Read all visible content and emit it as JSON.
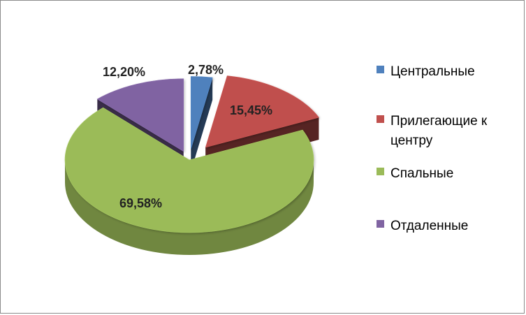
{
  "chart_data": {
    "type": "pie",
    "title": "",
    "labels": [
      "Центральные",
      "Прилегающие к центру",
      "Спальные",
      "Отдаленные"
    ],
    "legend_lines": [
      [
        "Центральные"
      ],
      [
        "Прилегающие к",
        "центру"
      ],
      [
        "Спальные"
      ],
      [
        "Отдаленные"
      ]
    ],
    "values": [
      2.78,
      15.45,
      69.58,
      12.2
    ],
    "value_labels": [
      "2,78%",
      "15,45%",
      "69,58%",
      "12,20%"
    ],
    "colors": [
      "#4F81BD",
      "#C0504D",
      "#9BBB59",
      "#8064A2"
    ],
    "legend_position": "right",
    "three_d": true
  }
}
